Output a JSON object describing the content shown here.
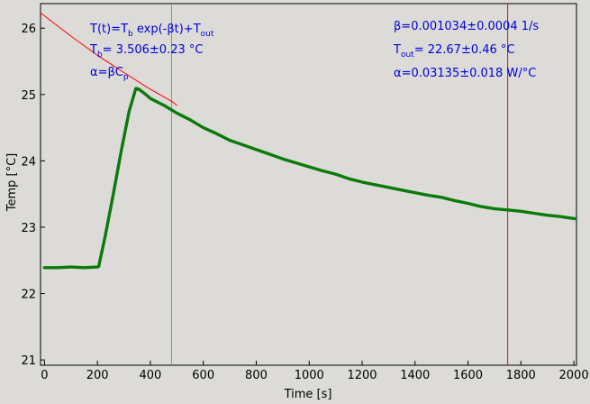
{
  "chart_data": {
    "type": "line",
    "title": "",
    "xlabel": "Time [s]",
    "ylabel": "Temp [°C]",
    "xlim": [
      -15,
      2010
    ],
    "ylim": [
      20.92,
      26.37
    ],
    "xticks": [
      0,
      200,
      400,
      600,
      800,
      1000,
      1200,
      1400,
      1600,
      1800,
      2000
    ],
    "yticks": [
      21,
      22,
      23,
      24,
      25,
      26
    ],
    "grid": false,
    "legend": "none",
    "series": [
      {
        "color": "#0a7a0a",
        "style": "thick-line",
        "x": [
          0,
          50,
          100,
          150,
          200,
          205,
          230,
          260,
          290,
          320,
          345,
          350,
          360,
          380,
          400,
          450,
          500,
          550,
          600,
          650,
          700,
          750,
          800,
          850,
          900,
          950,
          1000,
          1050,
          1100,
          1150,
          1200,
          1250,
          1300,
          1350,
          1400,
          1450,
          1500,
          1550,
          1600,
          1650,
          1700,
          1750,
          1800,
          1850,
          1900,
          1950,
          2000,
          2010
        ],
        "y": [
          22.39,
          22.39,
          22.4,
          22.39,
          22.4,
          22.41,
          22.88,
          23.5,
          24.15,
          24.75,
          25.09,
          25.09,
          25.07,
          25.01,
          24.94,
          24.84,
          24.72,
          24.62,
          24.5,
          24.41,
          24.31,
          24.24,
          24.17,
          24.1,
          24.03,
          23.97,
          23.91,
          23.85,
          23.8,
          23.73,
          23.68,
          23.64,
          23.6,
          23.56,
          23.52,
          23.48,
          23.45,
          23.4,
          23.36,
          23.31,
          23.28,
          23.26,
          23.24,
          23.21,
          23.18,
          23.16,
          23.13,
          23.13
        ]
      },
      {
        "color": "#ff0000",
        "style": "fit-line",
        "x": [
          -15,
          100,
          200,
          300,
          400,
          480,
          500
        ],
        "y": [
          26.23,
          25.88,
          25.59,
          25.33,
          25.08,
          24.9,
          24.84
        ]
      }
    ],
    "vlines": [
      {
        "x": 480,
        "color": "#00ee00"
      },
      {
        "x": 1750,
        "color": "#ff0000"
      }
    ]
  },
  "annotations": {
    "formula_prefix": "T(t)=T",
    "formula_sub_b": "b",
    "formula_mid": " exp(-βt)+T",
    "formula_sub_out": "out",
    "tb_prefix": "T",
    "tb_sub": "b",
    "tb_value": "= 3.506±0.23 °C",
    "alpha_def_prefix": "α=βC",
    "alpha_def_sub": "p",
    "beta": "β=0.001034±0.0004 1/s",
    "tout_prefix": "T",
    "tout_sub": "out",
    "tout_value": "= 22.67±0.46 °C",
    "alpha_value": "α=0.03135±0.018 W/°C"
  }
}
